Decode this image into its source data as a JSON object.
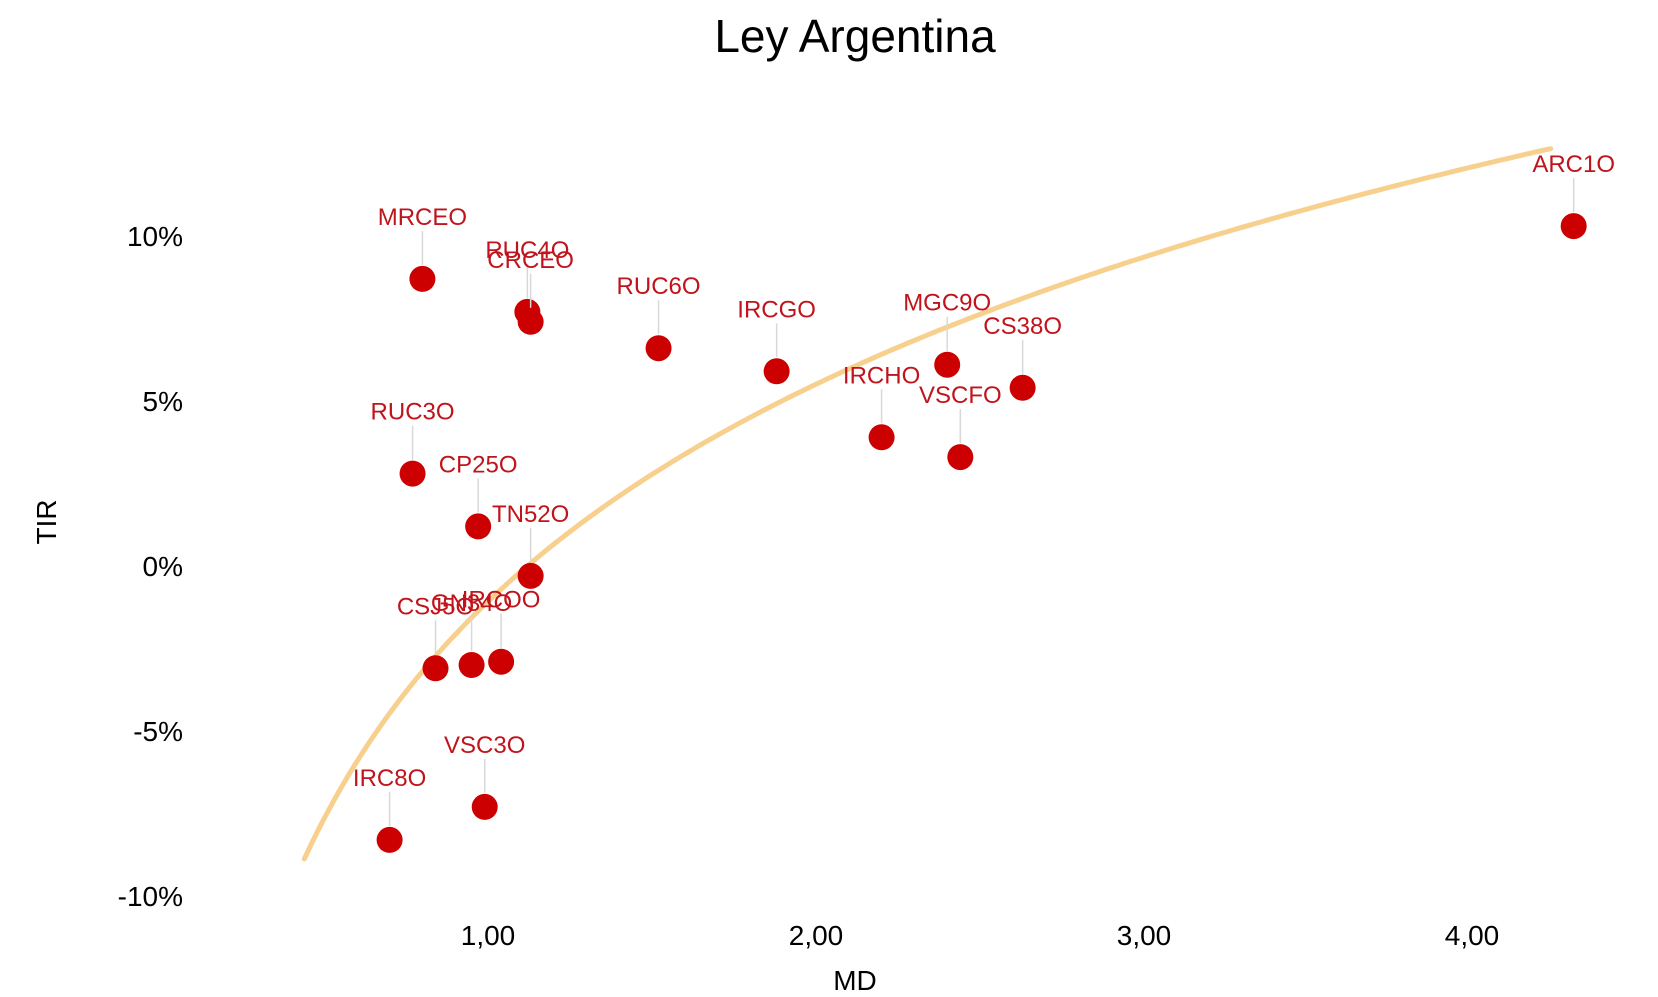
{
  "chart_data": {
    "type": "scatter",
    "title": "Ley Argentina",
    "xlabel": "MD",
    "ylabel": "TIR",
    "xlim": [
      0.0,
      4.55
    ],
    "ylim": [
      -10,
      14.3
    ],
    "x_ticks": [
      {
        "value": 1,
        "label": "1,00"
      },
      {
        "value": 2,
        "label": "2,00"
      },
      {
        "value": 3,
        "label": "3,00"
      },
      {
        "value": 4,
        "label": "4,00"
      }
    ],
    "y_ticks": [
      {
        "value": 10,
        "label": "10%"
      },
      {
        "value": 5,
        "label": "5%"
      },
      {
        "value": 0,
        "label": "0%"
      },
      {
        "value": -5,
        "label": "-5%"
      },
      {
        "value": -10,
        "label": "-10%"
      }
    ],
    "grid": false,
    "legend": "none",
    "point_color": "#cc0000",
    "label_color": "#c0141c",
    "trend_color": "#f8d08e",
    "points": [
      {
        "label": "MRCEO",
        "x": 0.8,
        "y": 8.7
      },
      {
        "label": "RUC4O",
        "x": 1.12,
        "y": 7.7
      },
      {
        "label": "CRCEO",
        "x": 1.13,
        "y": 7.4
      },
      {
        "label": "RUC6O",
        "x": 1.52,
        "y": 6.6
      },
      {
        "label": "IRCGO",
        "x": 1.88,
        "y": 5.9
      },
      {
        "label": "MGC9O",
        "x": 2.4,
        "y": 6.1
      },
      {
        "label": "CS38O",
        "x": 2.63,
        "y": 5.4
      },
      {
        "label": "IRCHO",
        "x": 2.2,
        "y": 3.9
      },
      {
        "label": "VSCFO",
        "x": 2.44,
        "y": 3.3
      },
      {
        "label": "ARC1O",
        "x": 4.31,
        "y": 10.3
      },
      {
        "label": "RUC3O",
        "x": 0.77,
        "y": 2.8
      },
      {
        "label": "CP25O",
        "x": 0.97,
        "y": 1.2
      },
      {
        "label": "TN52O",
        "x": 1.13,
        "y": -0.3
      },
      {
        "label": "CSJ5O",
        "x": 0.84,
        "y": -3.1
      },
      {
        "label": "GN34O",
        "x": 0.95,
        "y": -3.0
      },
      {
        "label": "IRCOO",
        "x": 1.04,
        "y": -2.9
      },
      {
        "label": "IRC8O",
        "x": 0.7,
        "y": -8.3
      },
      {
        "label": "VSC3O",
        "x": 0.99,
        "y": -7.3
      }
    ],
    "trendline": {
      "type": "log",
      "a": 0.55,
      "b": 9.5
    }
  }
}
